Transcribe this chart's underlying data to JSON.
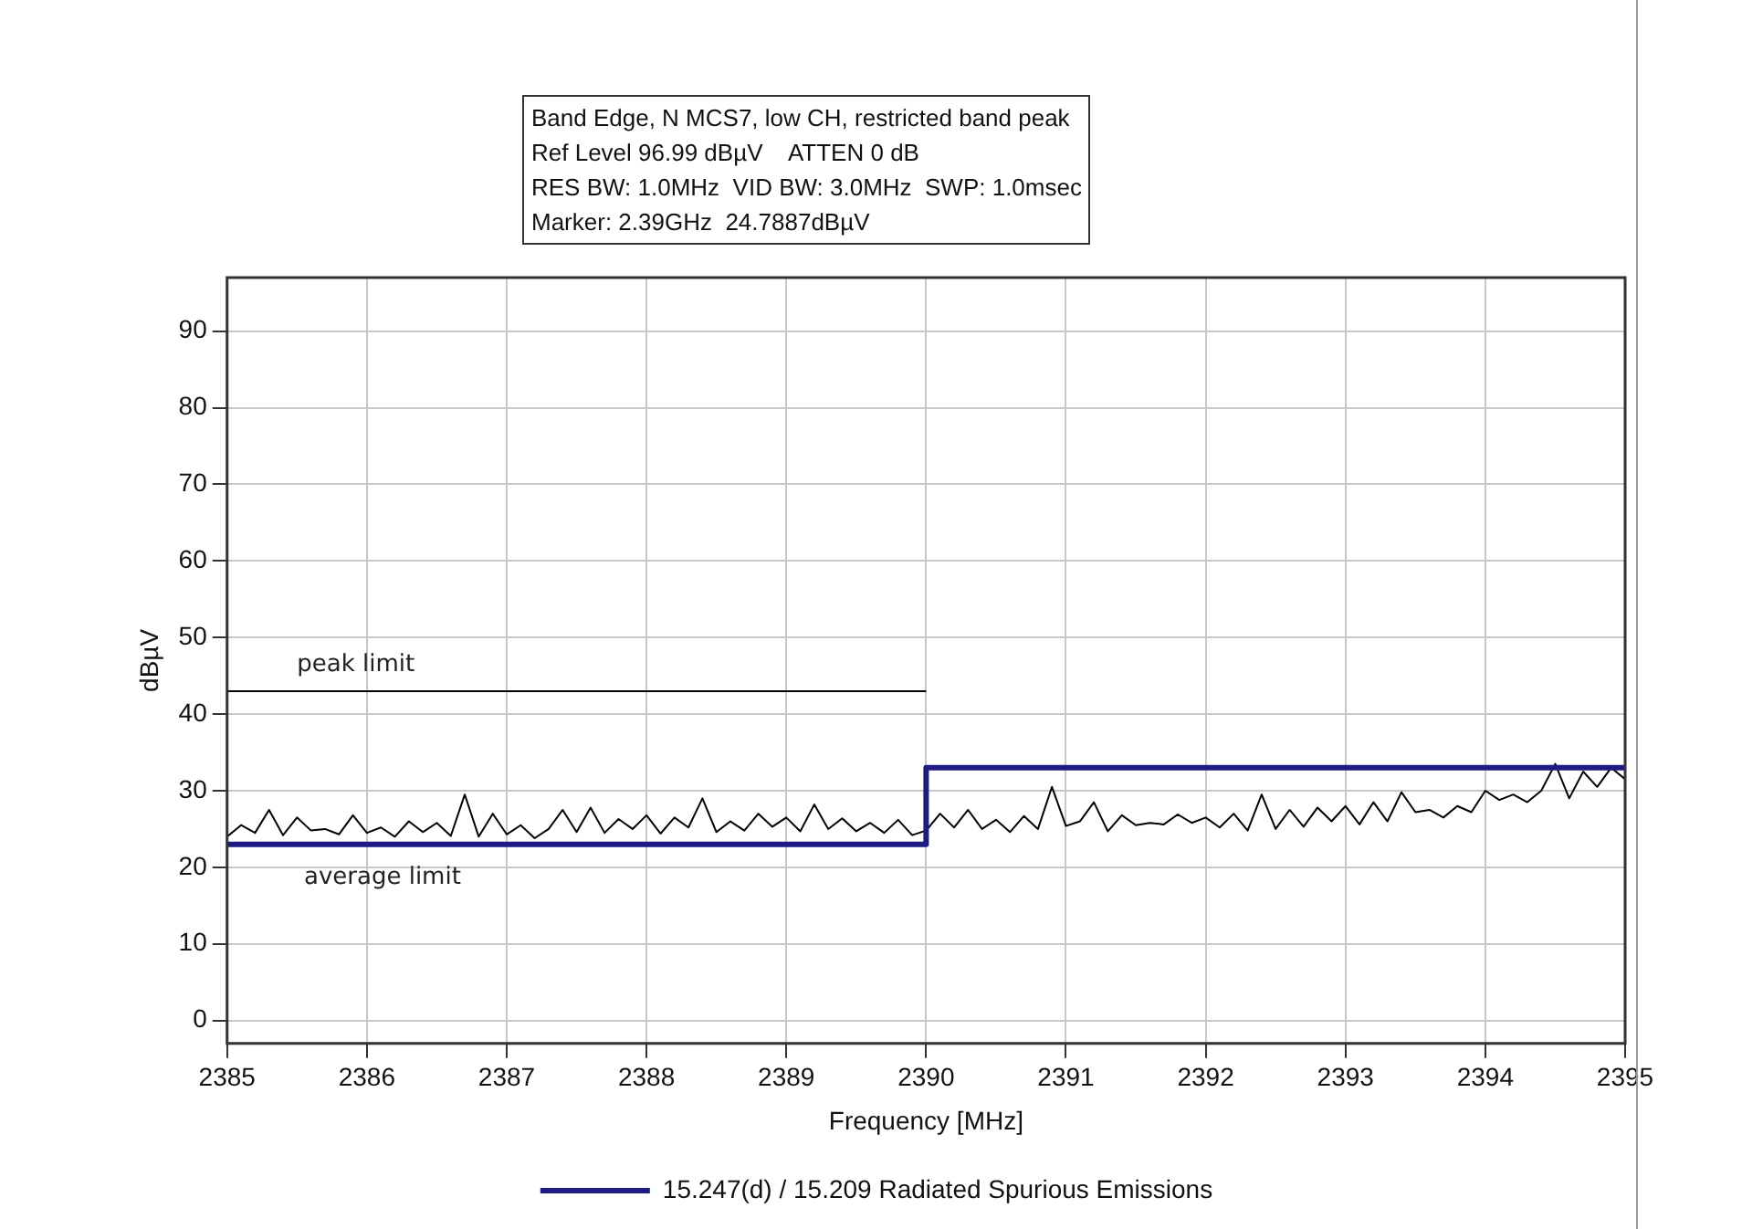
{
  "chart_data": {
    "type": "line",
    "title": "Band Edge, N MCS7, low CH, restricted band peak",
    "annotations": [
      "Ref Level 96.99 dBµV    ATTEN 0 dB",
      "RES BW: 1.0MHz  VID BW: 3.0MHz  SWP: 1.0msec",
      "Marker: 2.39GHz  24.7887dBµV",
      {
        "text": "peak limit",
        "x": 2385.5,
        "y": 43
      },
      {
        "text": "average limit",
        "x": 2385.55,
        "y": 23
      }
    ],
    "xlabel": "Frequency [MHz]",
    "ylabel": "dBµV",
    "xlim": [
      2385,
      2395
    ],
    "xticks": [
      2385,
      2386,
      2387,
      2388,
      2389,
      2390,
      2391,
      2392,
      2393,
      2394,
      2395
    ],
    "ylim": [
      -3,
      97
    ],
    "yticks": [
      0,
      10,
      20,
      30,
      40,
      50,
      60,
      70,
      80,
      90
    ],
    "grid": true,
    "legend": "bottom",
    "marker": "none",
    "line_style": "solid",
    "series": [
      {
        "color": "#000000",
        "x": [
          2385,
          2385.1,
          2385.2,
          2385.3,
          2385.4,
          2385.5,
          2385.6,
          2385.7,
          2385.8,
          2385.9,
          2386,
          2386.1,
          2386.2,
          2386.3,
          2386.4,
          2386.5,
          2386.6,
          2386.7,
          2386.8,
          2386.9,
          2387,
          2387.1,
          2387.2,
          2387.3,
          2387.4,
          2387.5,
          2387.6,
          2387.7,
          2387.8,
          2387.9,
          2388,
          2388.1,
          2388.2,
          2388.3,
          2388.4,
          2388.5,
          2388.6,
          2388.7,
          2388.8,
          2388.9,
          2389,
          2389.1,
          2389.2,
          2389.3,
          2389.4,
          2389.5,
          2389.6,
          2389.7,
          2389.8,
          2389.9,
          2390,
          2390.1,
          2390.2,
          2390.3,
          2390.4,
          2390.5,
          2390.6,
          2390.7,
          2390.8,
          2390.9,
          2391,
          2391.1,
          2391.2,
          2391.3,
          2391.4,
          2391.5,
          2391.6,
          2391.7,
          2391.8,
          2391.9,
          2392,
          2392.1,
          2392.2,
          2392.3,
          2392.4,
          2392.5,
          2392.6,
          2392.7,
          2392.8,
          2392.9,
          2393,
          2393.1,
          2393.2,
          2393.3,
          2393.4,
          2393.5,
          2393.6,
          2393.7,
          2393.8,
          2393.9,
          2394,
          2394.1,
          2394.2,
          2394.3,
          2394.4,
          2394.5,
          2394.6,
          2394.7,
          2394.8,
          2394.9,
          2395
        ],
        "values": [
          24.0,
          25.5,
          24.5,
          27.5,
          24.2,
          26.5,
          24.8,
          25.0,
          24.3,
          26.8,
          24.5,
          25.2,
          24.0,
          26.0,
          24.6,
          25.8,
          24.1,
          29.5,
          24.0,
          27.0,
          24.3,
          25.5,
          23.8,
          25.0,
          27.5,
          24.6,
          27.8,
          24.5,
          26.3,
          25.0,
          26.8,
          24.4,
          26.5,
          25.2,
          29.0,
          24.6,
          26.0,
          24.8,
          27.0,
          25.3,
          26.5,
          24.7,
          28.2,
          25.0,
          26.4,
          24.7,
          25.8,
          24.5,
          26.2,
          24.2,
          24.8,
          27.0,
          25.2,
          27.5,
          25.0,
          26.2,
          24.6,
          26.7,
          25.0,
          30.5,
          25.4,
          26.0,
          28.5,
          24.7,
          26.8,
          25.5,
          25.8,
          25.6,
          26.9,
          25.8,
          26.5,
          25.2,
          27.0,
          24.8,
          29.5,
          25.0,
          27.5,
          25.3,
          27.8,
          26.0,
          28.0,
          25.6,
          28.5,
          26.0,
          29.8,
          27.2,
          27.5,
          26.5,
          28.0,
          27.2,
          30.0,
          28.8,
          29.5,
          28.5,
          30.0,
          33.5,
          29.0,
          32.5,
          30.5,
          33.0,
          31.5
        ]
      },
      {
        "color": "#000000",
        "x": [
          2385,
          2390
        ],
        "values": [
          43,
          43
        ]
      },
      {
        "name": "15.247(d) / 15.209 Radiated Spurious Emissions",
        "color": "#1c1c84",
        "x": [
          2385,
          2390,
          2390,
          2395
        ],
        "values": [
          23,
          23,
          33,
          33
        ]
      }
    ]
  }
}
